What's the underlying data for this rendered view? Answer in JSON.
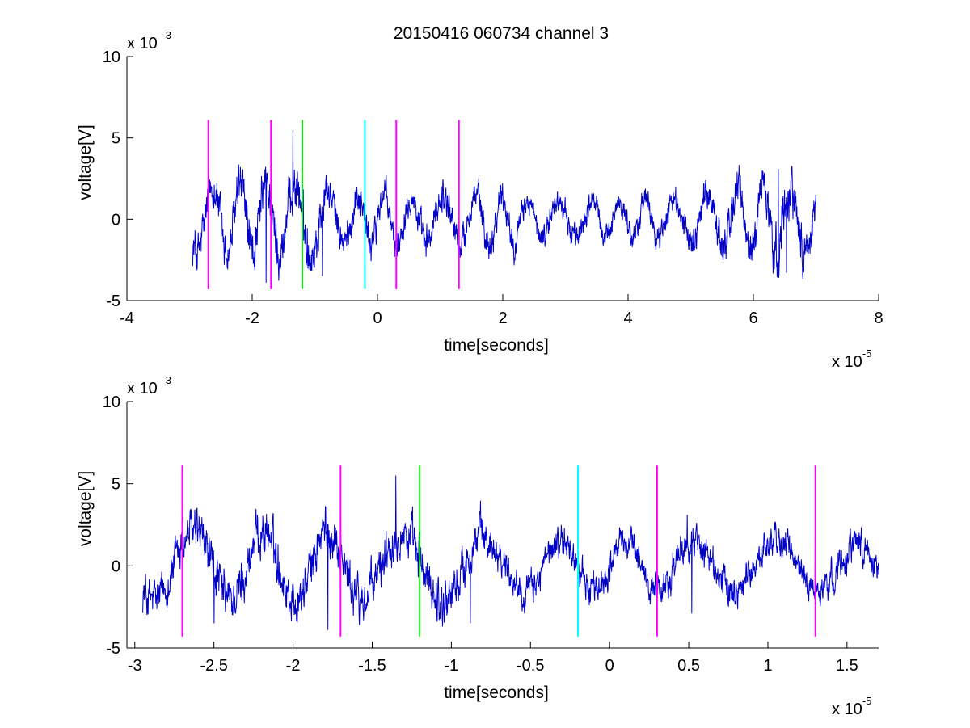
{
  "figure": {
    "title": "20150416 060734 channel 3",
    "background": "#ffffff"
  },
  "chart_data": [
    {
      "type": "line",
      "title": "20150416 060734 channel 3",
      "xlabel": "time[seconds]",
      "ylabel": "voltage[V]",
      "x_multiplier": "x 10",
      "x_exponent": "-5",
      "y_multiplier": "x 10",
      "y_exponent": "-3",
      "xlim": [
        -4,
        8
      ],
      "ylim": [
        -5,
        10
      ],
      "xticks": [
        -4,
        -2,
        0,
        2,
        4,
        6,
        8
      ],
      "xtick_labels": [
        "-4",
        "-2",
        "0",
        "2",
        "4",
        "6",
        "8"
      ],
      "yticks": [
        -5,
        0,
        5,
        10
      ],
      "ytick_labels": [
        "-5",
        "0",
        "5",
        "10"
      ],
      "grid": false,
      "series": [
        {
          "color": "#0000cc",
          "x_range": [
            -2.95,
            7.0
          ],
          "y_baseline": 0,
          "notable_points": [
            [
              -2.7,
              1.9
            ],
            [
              -1.7,
              3.5
            ],
            [
              -1.35,
              5.5
            ],
            [
              -1.78,
              -3.9
            ],
            [
              -0.88,
              -3.5
            ],
            [
              6.4,
              3.1
            ],
            [
              6.53,
              -3.3
            ]
          ]
        }
      ],
      "markers": [
        {
          "x": -2.7,
          "y_range": [
            -4.3,
            6.1
          ],
          "color": "#ff00ff"
        },
        {
          "x": -1.7,
          "y_range": [
            -4.3,
            6.1
          ],
          "color": "#ff00ff"
        },
        {
          "x": -1.2,
          "y_range": [
            -4.3,
            6.1
          ],
          "color": "#00ee00"
        },
        {
          "x": -0.2,
          "y_range": [
            -4.3,
            6.1
          ],
          "color": "#00ffff"
        },
        {
          "x": 0.3,
          "y_range": [
            -4.3,
            6.1
          ],
          "color": "#ff00ff"
        },
        {
          "x": 1.3,
          "y_range": [
            -4.3,
            6.1
          ],
          "color": "#ff00ff"
        }
      ]
    },
    {
      "type": "line",
      "title": "",
      "xlabel": "time[seconds]",
      "ylabel": "voltage[V]",
      "x_multiplier": "x 10",
      "x_exponent": "-5",
      "y_multiplier": "x 10",
      "y_exponent": "-3",
      "xlim": [
        -3.05,
        1.7
      ],
      "ylim": [
        -5,
        10
      ],
      "xticks": [
        -3,
        -2.5,
        -2,
        -1.5,
        -1,
        -0.5,
        0,
        0.5,
        1,
        1.5
      ],
      "xtick_labels": [
        "-3",
        "-2.5",
        "-2",
        "-1.5",
        "-1",
        "-0.5",
        "0",
        "0.5",
        "1",
        "1.5"
      ],
      "yticks": [
        -5,
        0,
        5,
        10
      ],
      "ytick_labels": [
        "-5",
        "0",
        "5",
        "10"
      ],
      "grid": false,
      "series": [
        {
          "color": "#0000cc",
          "x_range": [
            -2.95,
            1.7
          ],
          "y_baseline": 0,
          "notable_points": [
            [
              -2.7,
              1.9
            ],
            [
              -1.7,
              3.5
            ],
            [
              -1.35,
              5.5
            ],
            [
              -1.78,
              -3.9
            ],
            [
              -2.5,
              -3.5
            ],
            [
              -0.88,
              -3.5
            ],
            [
              0.49,
              3.1
            ],
            [
              0.52,
              -2.9
            ],
            [
              1.3,
              2.2
            ]
          ]
        }
      ],
      "markers": [
        {
          "x": -2.7,
          "y_range": [
            -4.3,
            6.1
          ],
          "color": "#ff00ff"
        },
        {
          "x": -1.7,
          "y_range": [
            -4.3,
            6.1
          ],
          "color": "#ff00ff"
        },
        {
          "x": -1.2,
          "y_range": [
            -4.3,
            6.1
          ],
          "color": "#00ee00"
        },
        {
          "x": -0.2,
          "y_range": [
            -4.3,
            6.1
          ],
          "color": "#00ffff"
        },
        {
          "x": 0.3,
          "y_range": [
            -4.3,
            6.1
          ],
          "color": "#ff00ff"
        },
        {
          "x": 1.3,
          "y_range": [
            -4.3,
            6.1
          ],
          "color": "#ff00ff"
        }
      ]
    }
  ]
}
